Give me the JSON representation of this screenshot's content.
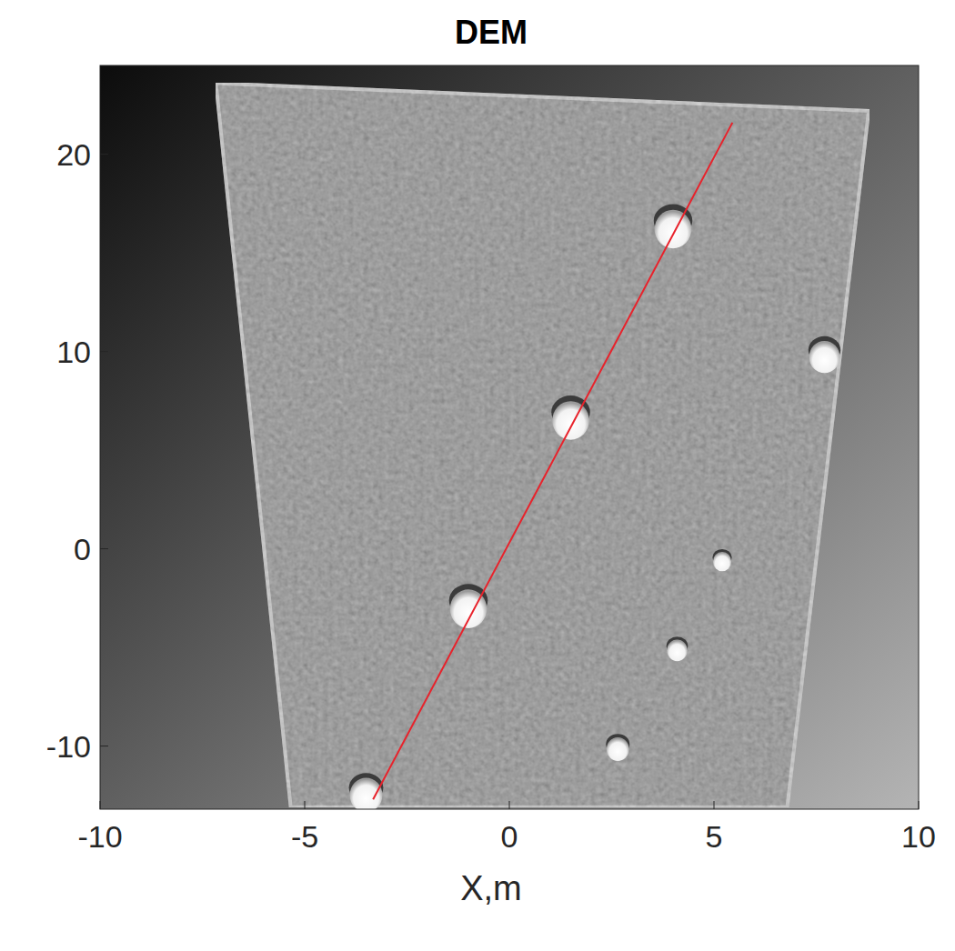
{
  "chart_data": {
    "type": "scatter",
    "title": "DEM",
    "x_label": "X,m",
    "xlim": [
      -10,
      10
    ],
    "ylim": [
      -13.2,
      24.5
    ],
    "xticks": [
      -10,
      -5,
      0,
      5,
      10
    ],
    "yticks": [
      -10,
      0,
      10,
      20
    ],
    "survey_area": {
      "x": [
        -7.17,
        8.78,
        6.79,
        -5.34
      ],
      "y": [
        23.6,
        22.2,
        -13.1,
        -13.1
      ]
    },
    "series": [
      {
        "type": "scatter",
        "color": "#ffffff",
        "marker": "circle",
        "x": [
          4.0,
          7.7,
          1.5,
          -1.0,
          -3.5,
          5.2,
          4.1,
          2.65
        ],
        "values": [
          16.3,
          9.8,
          6.6,
          -2.95,
          -12.4,
          -0.6,
          -5.1,
          -10.1
        ],
        "size": [
          0.9,
          0.75,
          0.9,
          0.9,
          0.8,
          0.45,
          0.5,
          0.55
        ]
      },
      {
        "type": "line",
        "color": "#e8222b",
        "line_style": "solid",
        "x": [
          -3.33,
          5.45
        ],
        "values": [
          -12.7,
          21.6
        ]
      }
    ]
  }
}
